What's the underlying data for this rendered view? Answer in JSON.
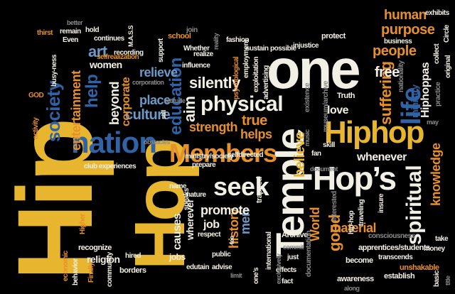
{
  "words": {
    "hip": "Hip",
    "hop": "Hop",
    "one": "one",
    "temple": "Temple",
    "hips": "Hop’s",
    "hiphop": "Hiphop",
    "members": "Members",
    "nation": "nation",
    "seek": "seek",
    "physical": "physical",
    "education": "education",
    "life": "life",
    "spiritual": "spiritual",
    "society": "society",
    "human": "human",
    "purpose": "purpose",
    "people": "people",
    "suffering": "suffering",
    "hiphoppas": "Hiphoppas",
    "ministry": "ministry",
    "believe": "believe",
    "strength": "strength",
    "silently": "silently",
    "aim": "aim",
    "culture": "culture",
    "place": "place",
    "beyond": "beyond",
    "corporate": "corporate",
    "entertainment": "entertainment",
    "relieve": "relieve",
    "women": "women",
    "art": "art",
    "help": "help",
    "true": "true",
    "helps": "helps",
    "love": "love",
    "free": "free",
    "whenever": "whenever",
    "knowledge": "knowledge",
    "world": "World",
    "good": "good",
    "material": "material",
    "history": "history",
    "men": "men",
    "job": "job",
    "promote": "promote",
    "causes": "causes",
    "wherever": "wherever",
    "archive": "Archive",
    "documentation": "documentation",
    "consciousness": "consciousness",
    "apprentices": "apprentices/students",
    "transcends": "transcends",
    "unshakable": "unshakable",
    "establish": "establish",
    "awareness": "awareness",
    "become": "become",
    "along": "along",
    "money": "money",
    "take": "take",
    "title": "title",
    "basic": "basic",
    "effects": "effects",
    "fact": "fact",
    "limit": "limit",
    "advise": "advise",
    "public": "public",
    "edutain": "edutain",
    "respect": "respect",
    "jobs": "jobs",
    "hired": "hired",
    "religion": "religion",
    "borders": "borders",
    "recognize": "recognize",
    "economic": "economic",
    "behavior": "behavior",
    "community": "community",
    "finally": "Finally",
    "higher": "Higher",
    "name": "name",
    "speaks": "speaks",
    "nature": "nature",
    "prepare": "prepare",
    "selfdirected": "selfdirected",
    "ministry_society": "ministry/society",
    "trapped": "trapped",
    "fan": "fan",
    "document": "document",
    "interested": "interested",
    "museum": "museum/archive",
    "existence": "existence",
    "truth": "Truth",
    "skill": "skill",
    "traveling": "traveling",
    "insure": "insure",
    "hip_hop_small": "hip-hop",
    "music": "music",
    "attitude": "attitude",
    "still": "still",
    "obstacles": "obstacles",
    "club_experiences": "club experiences",
    "activity": "activity",
    "god": "GOD",
    "busy_ness": "busy-ness",
    "thirst": "thirst",
    "even": "Even",
    "remain": "remain",
    "better": "better",
    "hold": "hold",
    "continues": "continues",
    "recording": "recording",
    "selfrealization": "selfrealization",
    "mass": "M.A.S.S",
    "school": "school",
    "join": "join",
    "support": "support",
    "whether": "Whether",
    "realize": "realize",
    "influence": "influence",
    "reality": "reality",
    "fashion": "fashion",
    "sustain": "sustain",
    "psychological": "psychological",
    "employment": "employment",
    "advertising": "advertising",
    "exploitation": "exploitation",
    "injustice": "injustice",
    "possible": "possible",
    "protect": "protect",
    "business": "business",
    "collect": "collect",
    "exhibits": "exhibits",
    "nationality": "nationality",
    "practice": "practice",
    "original": "original",
    "circle": "Circle",
    "may": "may",
    "corporation": "corporation",
    "international": "international",
    "exclusively": "exclusively",
    "ones": "one’s",
    "commit": "commit",
    "just": "just",
    "fee": "fee"
  }
}
